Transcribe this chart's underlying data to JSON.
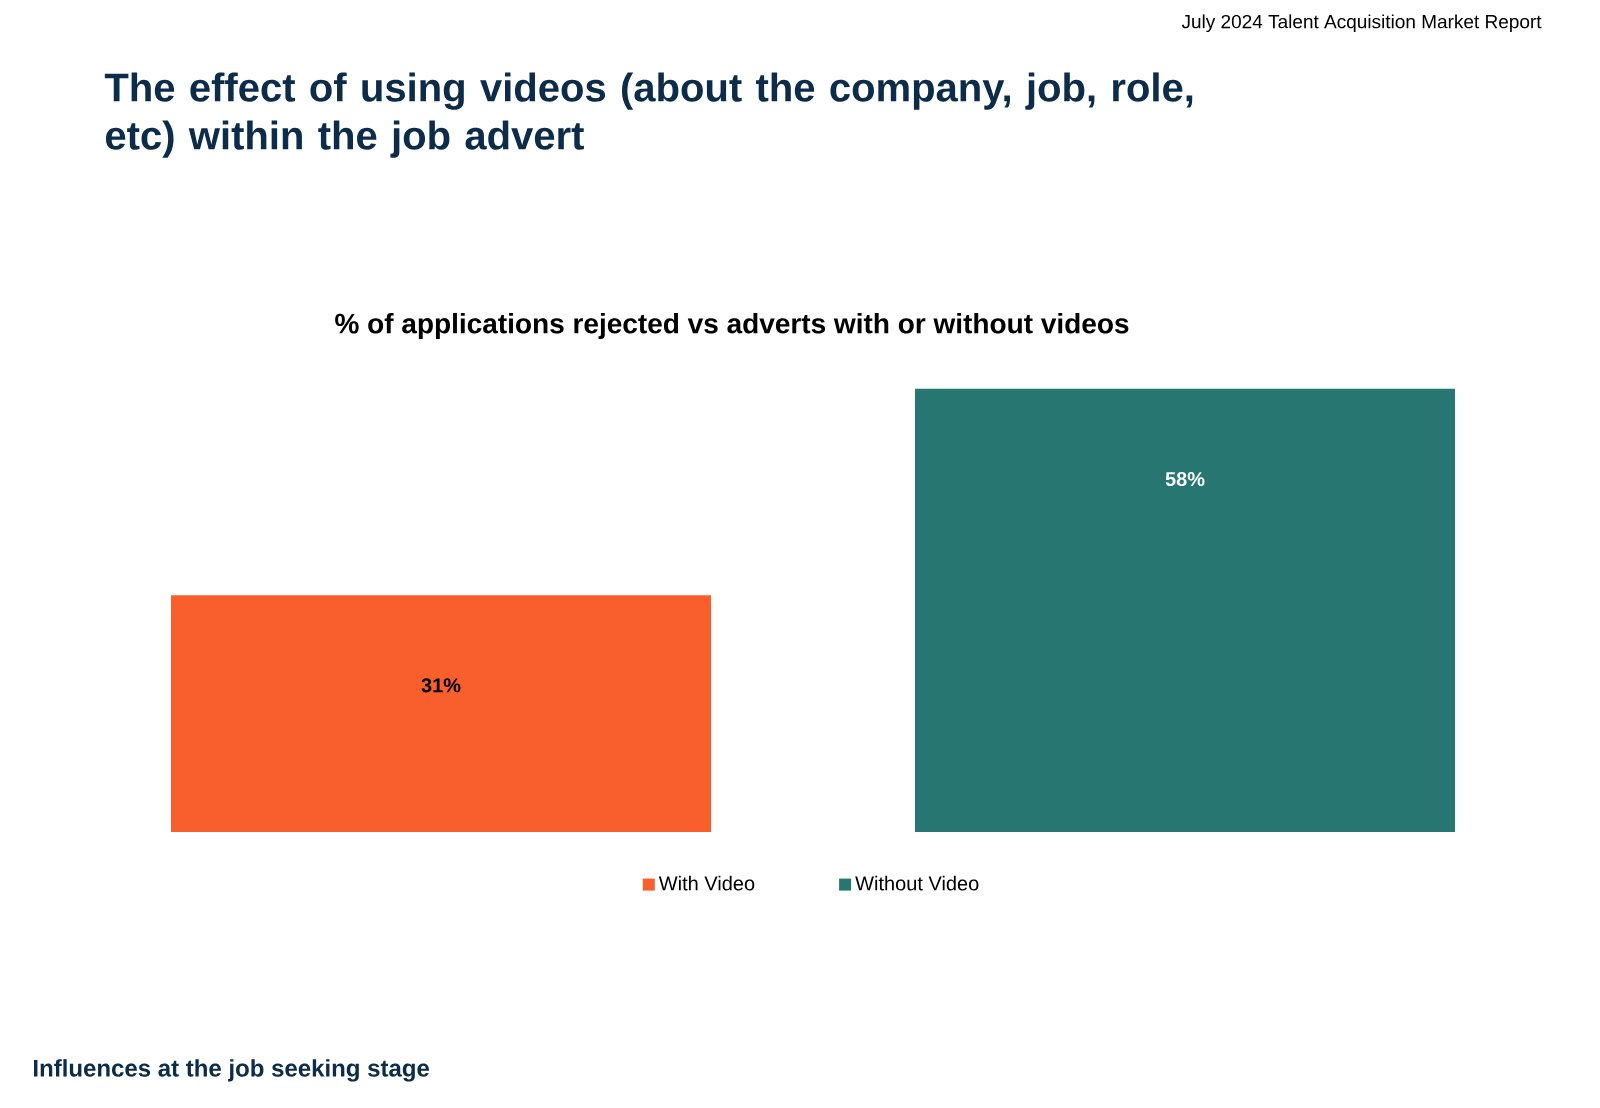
{
  "chart_data": {
    "type": "bar",
    "title": "The effect of using videos (about the company, job, role, etc) within the job advert",
    "subtitle": "% of applications rejected vs adverts with or without videos",
    "annotations": [
      "July 2024 Talent Acquisition Market Report",
      "Influences at the job seeking stage"
    ],
    "categories": [
      null
    ],
    "series": [
      {
        "name": "With Video",
        "color": "#f95f2c",
        "values": [
          31
        ],
        "value_labels": [
          "31%"
        ]
      },
      {
        "name": "Without Video",
        "color": "#277672",
        "values": [
          58
        ],
        "value_labels": [
          "58%"
        ]
      }
    ],
    "legend": "bottom"
  }
}
